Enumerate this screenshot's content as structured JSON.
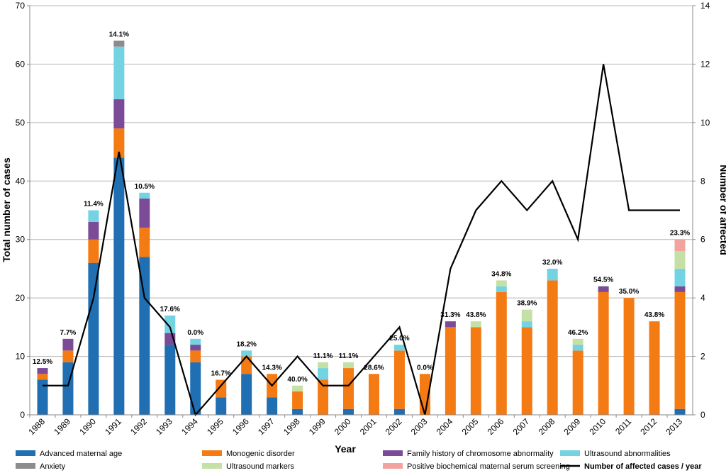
{
  "chart_data": {
    "type": "bar",
    "subtype": "stacked-bar-with-line",
    "categories": [
      "1988",
      "1989",
      "1990",
      "1991",
      "1992",
      "1993",
      "1994",
      "1995",
      "1996",
      "1997",
      "1998",
      "1999",
      "2000",
      "2001",
      "2002",
      "2003",
      "2004",
      "2005",
      "2006",
      "2007",
      "2008",
      "2009",
      "2010",
      "2011",
      "2012",
      "2013"
    ],
    "series": [
      {
        "name": "Advanced maternal age",
        "color": "#1f6fb2",
        "values": [
          6,
          9,
          26,
          44,
          27,
          12,
          9,
          3,
          7,
          3,
          1,
          0,
          1,
          0,
          1,
          0,
          0,
          0,
          0,
          0,
          0,
          0,
          0,
          0,
          0,
          1
        ]
      },
      {
        "name": "Monogenic disorder",
        "color": "#f47a14",
        "values": [
          1,
          2,
          4,
          5,
          5,
          0,
          2,
          3,
          3,
          4,
          3,
          6,
          7,
          7,
          10,
          7,
          15,
          15,
          21,
          15,
          23,
          11,
          21,
          20,
          16,
          20
        ]
      },
      {
        "name": "Family history of chromosome abnormality",
        "color": "#7b4b98",
        "values": [
          1,
          2,
          3,
          5,
          5,
          2,
          1,
          0,
          0,
          0,
          0,
          0,
          0,
          0,
          0,
          0,
          1,
          0,
          0,
          0,
          0,
          0,
          1,
          0,
          0,
          1
        ]
      },
      {
        "name": "Ultrasound abnormalities",
        "color": "#74d3e3",
        "values": [
          0,
          0,
          2,
          9,
          1,
          3,
          1,
          0,
          1,
          0,
          0,
          2,
          0,
          0,
          1,
          0,
          0,
          0,
          1,
          1,
          2,
          1,
          0,
          0,
          0,
          3
        ]
      },
      {
        "name": "Anxiety",
        "color": "#8c8c8c",
        "values": [
          0,
          0,
          0,
          1,
          0,
          0,
          0,
          0,
          0,
          0,
          0,
          0,
          0,
          0,
          0,
          0,
          0,
          0,
          0,
          0,
          0,
          0,
          0,
          0,
          0,
          0
        ]
      },
      {
        "name": "Ultrasound markers",
        "color": "#c5e0a5",
        "values": [
          0,
          0,
          0,
          0,
          0,
          0,
          0,
          0,
          0,
          0,
          1,
          1,
          1,
          0,
          0,
          0,
          0,
          1,
          1,
          2,
          0,
          1,
          0,
          0,
          0,
          3
        ]
      },
      {
        "name": "Positive biochemical maternal serum screening",
        "color": "#f2a3a0",
        "values": [
          0,
          0,
          0,
          0,
          0,
          0,
          0,
          0,
          0,
          0,
          0,
          0,
          0,
          0,
          0,
          0,
          0,
          0,
          0,
          0,
          0,
          0,
          0,
          0,
          0,
          2
        ]
      }
    ],
    "line": {
      "name": "Number of affected cases / year",
      "color": "#000000",
      "values": [
        1,
        1,
        4,
        9,
        4,
        3,
        0,
        1,
        2,
        1,
        2,
        1,
        1,
        2,
        3,
        0,
        5,
        7,
        8,
        7,
        8,
        6,
        12,
        7,
        7,
        7
      ]
    },
    "percent_labels": [
      "12.5%",
      "7.7%",
      "11.4%",
      "14.1%",
      "10.5%",
      "17.6%",
      "0.0%",
      "16.7%",
      "18.2%",
      "14.3%",
      "40.0%",
      "11.1%",
      "11.1%",
      "28.6%",
      "25.0%",
      "0.0%",
      "31.3%",
      "43.8%",
      "34.8%",
      "38.9%",
      "32.0%",
      "46.2%",
      "54.5%",
      "35.0%",
      "43.8%",
      "23.3%"
    ],
    "xlabel": "Year",
    "ylabel": "Total number of cases",
    "y2label": "Number of affected",
    "ylim": [
      0,
      70
    ],
    "y2lim": [
      0,
      14
    ],
    "yticks": [
      "0",
      "10",
      "20",
      "30",
      "40",
      "50",
      "60",
      "70"
    ],
    "y2ticks": [
      "0",
      "2",
      "4",
      "6",
      "8",
      "10",
      "12",
      "14"
    ],
    "legend": [
      "Advanced maternal age",
      "Monogenic disorder",
      "Family history of chromosome abnormality",
      "Ultrasound abnormalities",
      "Anxiety",
      "Ultrasound markers",
      "Positive biochemical maternal serum screening",
      "Number of affected cases / year"
    ]
  }
}
